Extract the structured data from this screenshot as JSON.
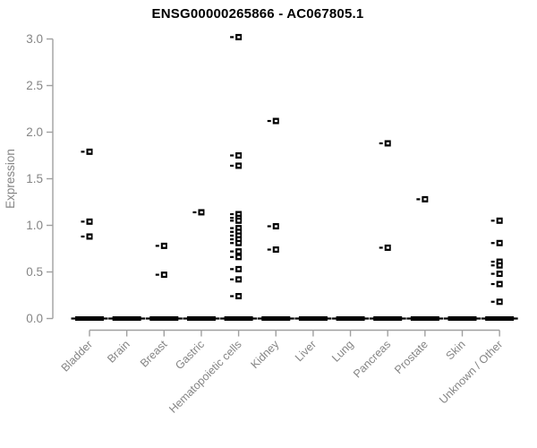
{
  "chart_data": {
    "type": "scatter",
    "subtype": "strip-plot",
    "title": "ENSG00000265866 - AC067805.1",
    "xlabel": "",
    "ylabel": "Expression",
    "ylim": [
      0,
      3.05
    ],
    "yticks": [
      0.0,
      0.5,
      1.0,
      1.5,
      2.0,
      2.5,
      3.0
    ],
    "grid": false,
    "legend": "none",
    "marker": "open-square-with-left-tick",
    "categories": [
      "Bladder",
      "Brain",
      "Breast",
      "Gastric",
      "Hematopoietic cells",
      "Kidney",
      "Liver",
      "Lung",
      "Pancreas",
      "Prostate",
      "Skin",
      "Unknown / Other"
    ],
    "series": [
      {
        "category": "Bladder",
        "values": [
          1.79,
          1.04,
          0.88
        ],
        "zero_band": true
      },
      {
        "category": "Brain",
        "values": [],
        "zero_band": true
      },
      {
        "category": "Breast",
        "values": [
          0.78,
          0.47
        ],
        "zero_band": true
      },
      {
        "category": "Gastric",
        "values": [
          1.14
        ],
        "zero_band": true
      },
      {
        "category": "Hematopoietic cells",
        "values": [
          3.02,
          1.75,
          1.64,
          1.12,
          1.08,
          1.05,
          0.97,
          0.93,
          0.89,
          0.85,
          0.81,
          0.72,
          0.66,
          0.53,
          0.42,
          0.24
        ],
        "zero_band": true
      },
      {
        "category": "Kidney",
        "values": [
          2.12,
          0.99,
          0.74
        ],
        "zero_band": true
      },
      {
        "category": "Liver",
        "values": [],
        "zero_band": true
      },
      {
        "category": "Lung",
        "values": [],
        "zero_band": true
      },
      {
        "category": "Pancreas",
        "values": [
          1.88,
          0.76
        ],
        "zero_band": true
      },
      {
        "category": "Prostate",
        "values": [
          1.28
        ],
        "zero_band": true
      },
      {
        "category": "Skin",
        "values": [],
        "zero_band": true
      },
      {
        "category": "Unknown / Other",
        "values": [
          1.05,
          0.81,
          0.61,
          0.57,
          0.48,
          0.37,
          0.18
        ],
        "zero_band": true
      }
    ],
    "zero_band_meaning": "dense cluster of overlapping sample points at expression 0 in every category, drawn as a thick black dash",
    "colors": {
      "points": "#000000",
      "axis_line": "#a0a0a0",
      "tick_text": "#858585",
      "title": "#000000",
      "background": "#ffffff"
    }
  }
}
